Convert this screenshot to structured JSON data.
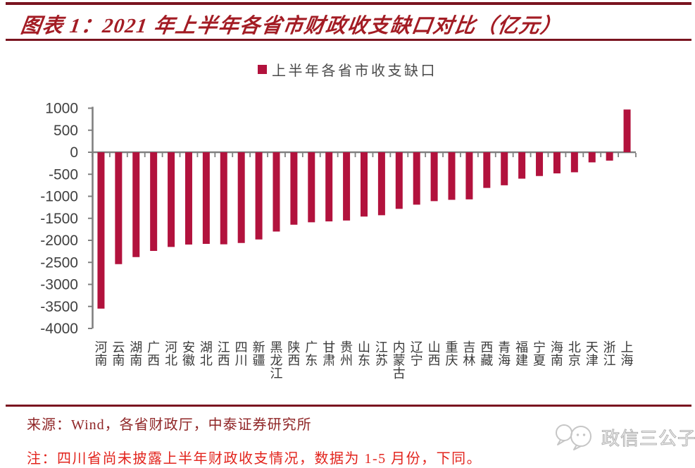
{
  "header": {
    "title": "图表 1：2021 年上半年各省市财政收支缺口对比（亿元）"
  },
  "legend": {
    "label": "上半年各省市收支缺口"
  },
  "chart_data": {
    "type": "bar",
    "title": "2021 年上半年各省市财政收支缺口对比（亿元）",
    "legend": "上半年各省市收支缺口",
    "categories": [
      "河南",
      "云南",
      "湖南",
      "广西",
      "河北",
      "安徽",
      "湖北",
      "江西",
      "四川",
      "新疆",
      "黑龙江",
      "陕西",
      "广东",
      "甘肃",
      "贵州",
      "山东",
      "江苏",
      "内蒙古",
      "辽宁",
      "山西",
      "重庆",
      "吉林",
      "西藏",
      "青海",
      "福建",
      "宁夏",
      "海南",
      "北京",
      "天津",
      "浙江",
      "上海"
    ],
    "values": [
      -3550,
      -2540,
      -2380,
      -2240,
      -2150,
      -2095,
      -2080,
      -2090,
      -2060,
      -1980,
      -1800,
      -1645,
      -1590,
      -1570,
      -1550,
      -1460,
      -1430,
      -1285,
      -1190,
      -1110,
      -1080,
      -1070,
      -810,
      -750,
      -600,
      -540,
      -480,
      -455,
      -230,
      -190,
      970
    ],
    "yticks": [
      1000,
      500,
      0,
      -500,
      -1000,
      -1500,
      -2000,
      -2500,
      -3000,
      -3500,
      -4000
    ],
    "ylim": [
      -4000,
      1000
    ],
    "unit": "亿元",
    "bar_color": "#b2123d",
    "axis_color": "#808080",
    "grid": false,
    "legend_position": "top-center"
  },
  "footer": {
    "source": "来源：Wind，各省财政厅，中泰证券研究所",
    "note": "注：四川省尚未披露上半年财政收支情况，数据为 1-5 月份，下同。",
    "watermark": "政信三公子"
  },
  "colors": {
    "title_red": "#a31c24",
    "rule_red": "#7a1420",
    "bar_red": "#b2123d",
    "note_red": "#e2241d",
    "source_red": "#8f2526",
    "axis_gray": "#808080",
    "label_gray": "#3a3a3a",
    "watermark_gray": "#b2b2b2"
  }
}
